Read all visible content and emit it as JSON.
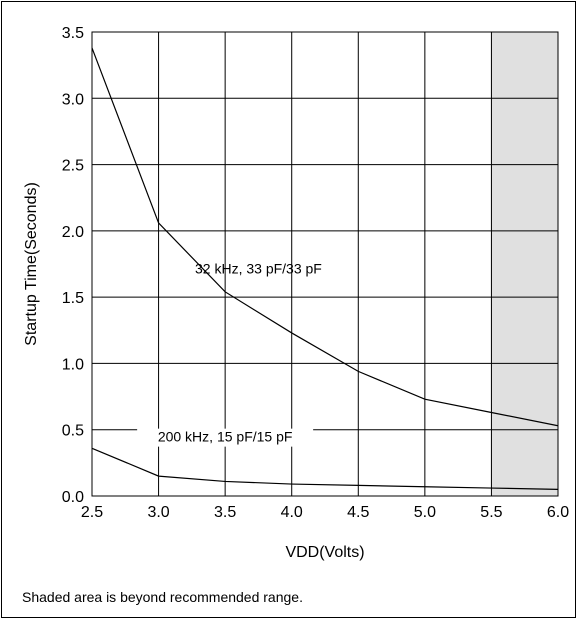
{
  "chart_data": {
    "type": "line",
    "xlabel": "VDD(Volts)",
    "ylabel": "Startup Time(Seconds)",
    "xlim": [
      2.5,
      6.0
    ],
    "ylim": [
      0.0,
      3.5
    ],
    "x_ticks": [
      "2.5",
      "3.0",
      "3.5",
      "4.0",
      "4.5",
      "5.0",
      "5.5",
      "6.0"
    ],
    "y_ticks": [
      "0.0",
      "0.5",
      "1.0",
      "1.5",
      "2.0",
      "2.5",
      "3.0",
      "3.5"
    ],
    "grid": true,
    "shaded_region": {
      "x_start": 5.5,
      "x_end": 6.0,
      "color": "#e0e0e0"
    },
    "series": [
      {
        "name": "32 kHz, 33 pF/33 pF",
        "x": [
          2.5,
          3.0,
          3.5,
          4.0,
          4.5,
          5.0,
          5.5,
          6.0
        ],
        "y": [
          3.38,
          2.06,
          1.54,
          1.23,
          0.94,
          0.73,
          0.63,
          0.53
        ]
      },
      {
        "name": "200 kHz, 15 pF/15 pF",
        "x": [
          2.5,
          3.0,
          3.5,
          4.0,
          4.5,
          5.0,
          5.5,
          6.0
        ],
        "y": [
          0.36,
          0.15,
          0.11,
          0.09,
          0.08,
          0.07,
          0.06,
          0.05
        ]
      }
    ]
  },
  "footnote": "Shaded area is beyond recommended range.",
  "colors": {
    "line": "#000000",
    "grid": "#000000",
    "shade": "#e0e0e0"
  }
}
